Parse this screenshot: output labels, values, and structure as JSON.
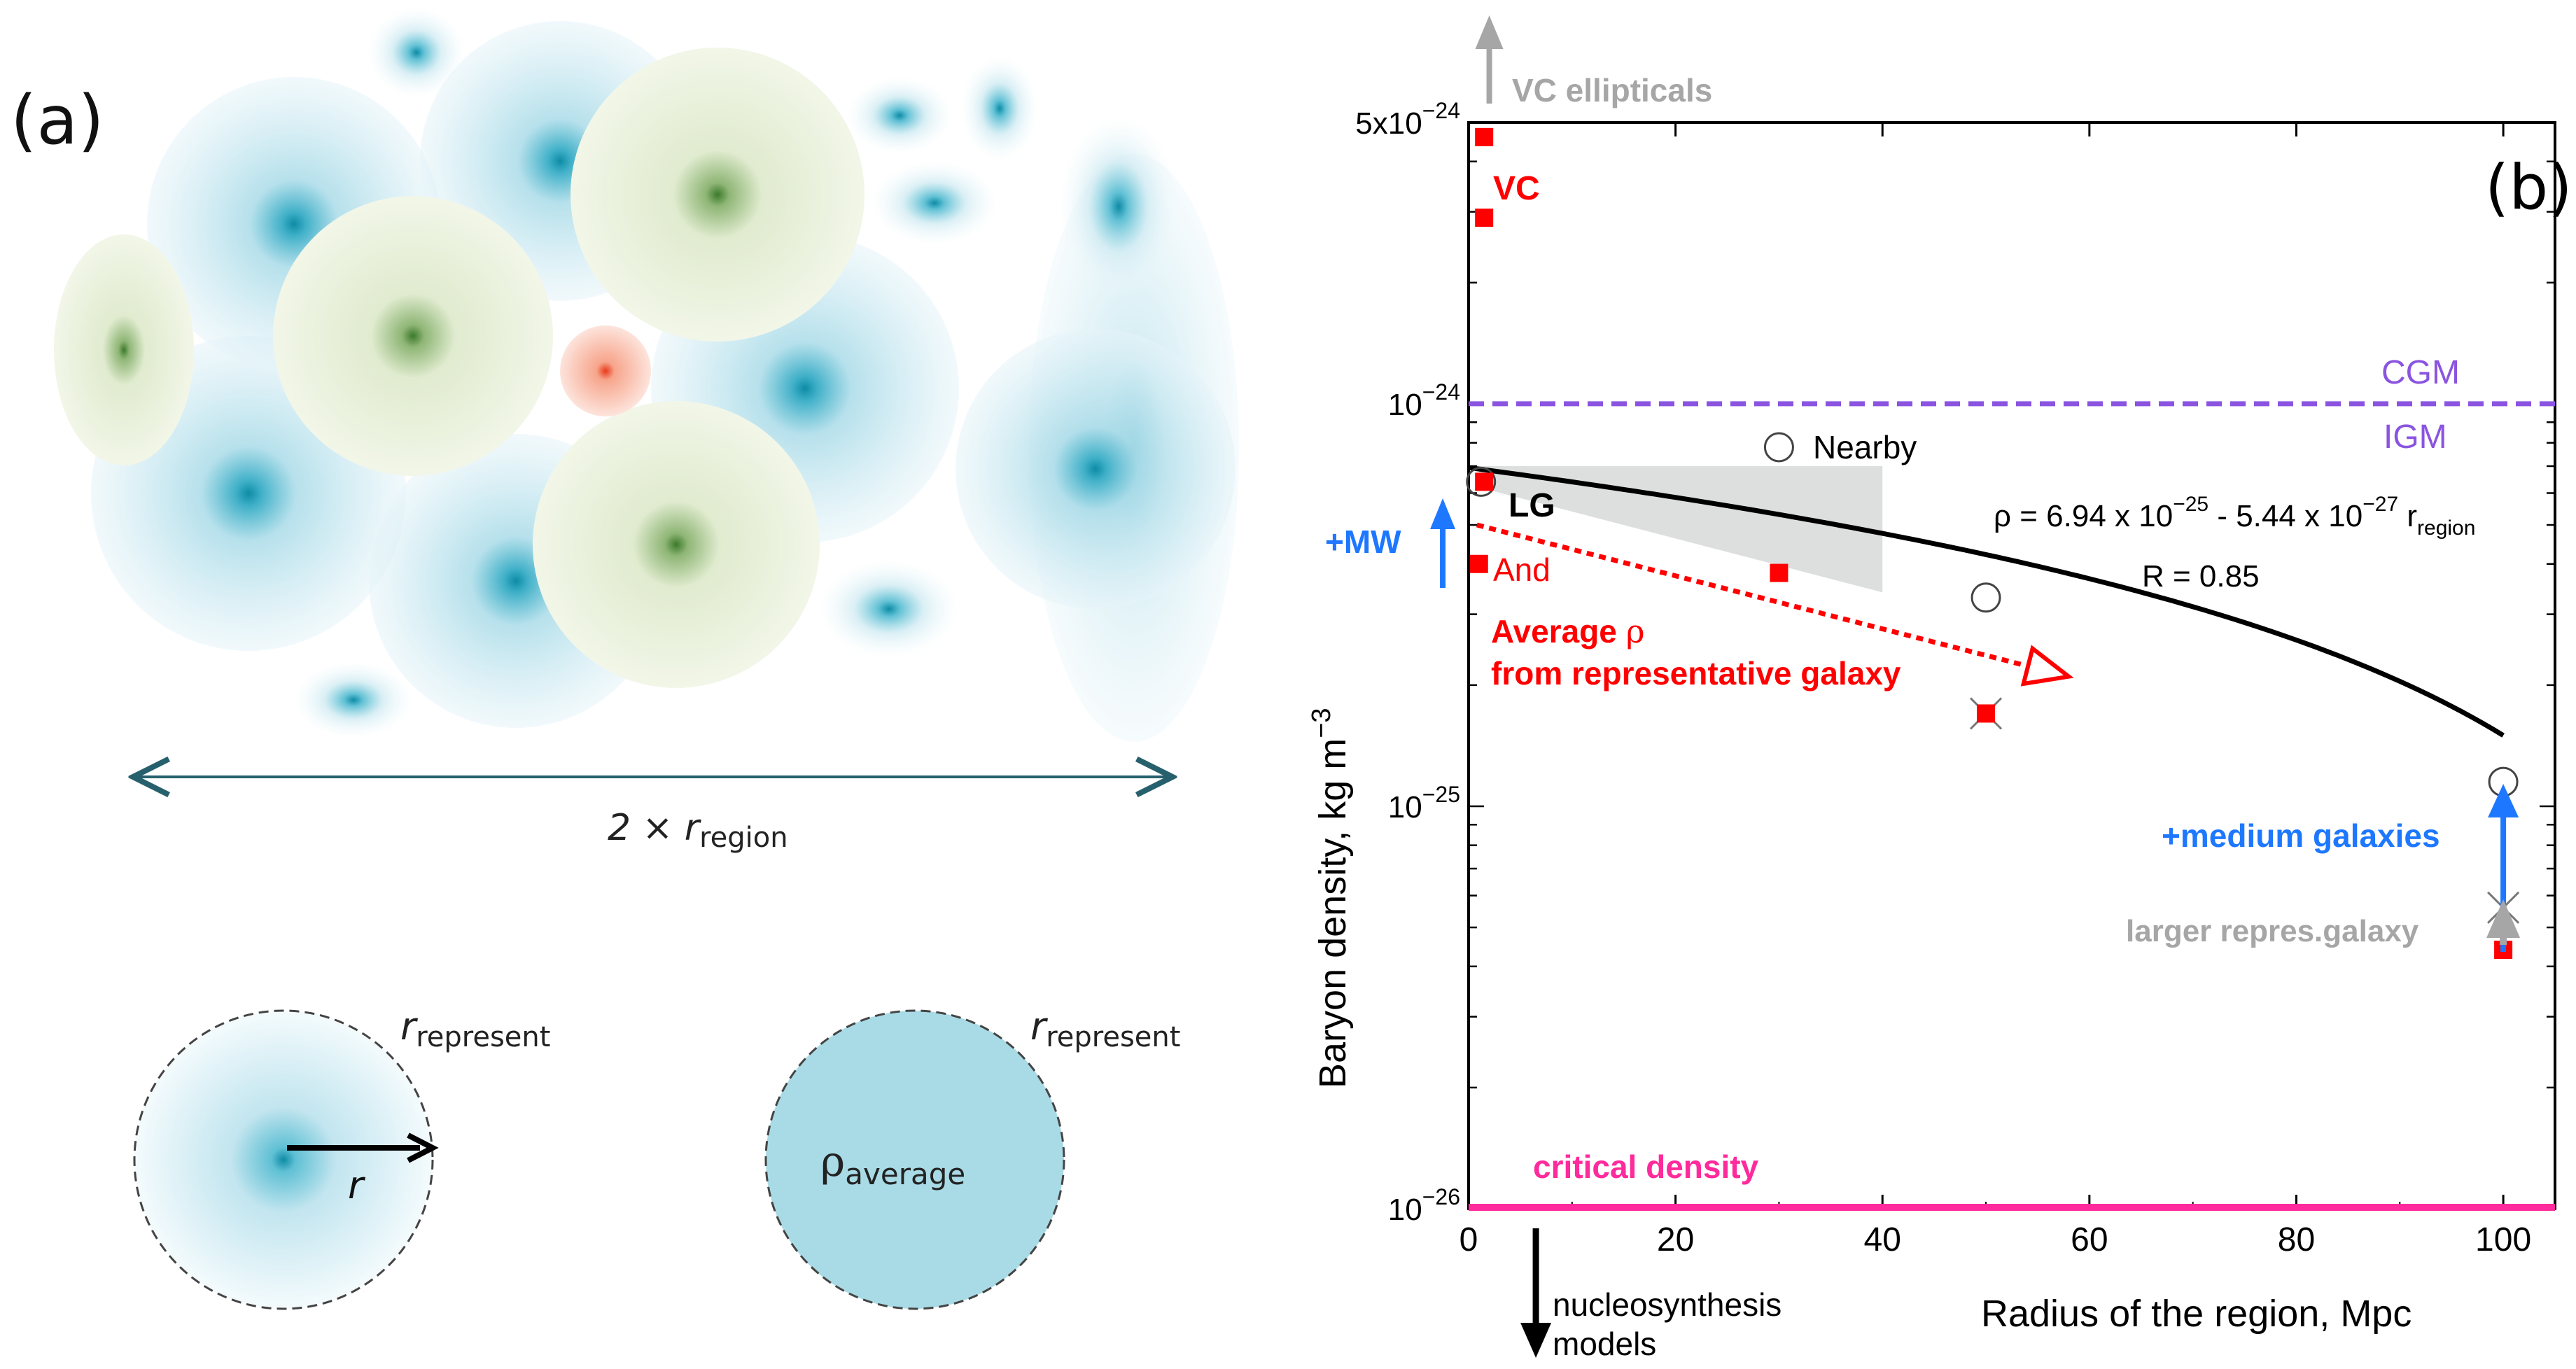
{
  "panel_a": {
    "label": "(a)",
    "region_label": {
      "prefix": "2 × ",
      "r": "r",
      "sub": "region"
    },
    "represent_label": {
      "r": "r",
      "sub": "represent"
    },
    "radius_label": "r",
    "avg_label": {
      "rho": "ρ",
      "sub": "average"
    }
  },
  "chart_data": {
    "type": "scatter",
    "panel_label": "(b)",
    "xlabel": "Radius of the region, Mpc",
    "ylabel": "Baryon density, kg m",
    "ylabel_sup": "−3",
    "xlim": [
      0,
      105
    ],
    "ylim": [
      1e-26,
      5e-24
    ],
    "yscale": "log",
    "x_ticks": [
      0,
      20,
      40,
      60,
      80,
      100
    ],
    "y_tick_labels": [
      {
        "value": 5e-24,
        "mant": "5x10",
        "exp": "−24"
      },
      {
        "value": 1e-24,
        "mant": "10",
        "exp": "−24"
      },
      {
        "value": 1e-25,
        "mant": "10",
        "exp": "−25"
      },
      {
        "value": 1e-26,
        "mant": "10",
        "exp": "−26"
      }
    ],
    "red_squares": [
      {
        "x": 1.5,
        "y": 4.6e-24
      },
      {
        "x": 1.5,
        "y": 2.9e-24
      },
      {
        "x": 1.5,
        "y": 6.4e-25
      },
      {
        "x": 1.0,
        "y": 4e-25
      },
      {
        "x": 30,
        "y": 3.8e-25
      },
      {
        "x": 50,
        "y": 1.7e-25
      },
      {
        "x": 100,
        "y": 4.4e-26
      }
    ],
    "open_circles": [
      {
        "x": 1.2,
        "y": 6.4e-25,
        "label": "LG"
      },
      {
        "x": 30,
        "y": 7.8e-25,
        "label": "Nearby"
      },
      {
        "x": 50,
        "y": 3.3e-25,
        "label": ""
      },
      {
        "x": 100,
        "y": 1.15e-25,
        "label": ""
      }
    ],
    "crosses": [
      {
        "x": 50,
        "y": 1.7e-25
      },
      {
        "x": 100,
        "y": 5.6e-26
      }
    ],
    "fit": {
      "a": 6.94e-25,
      "b": 5.44e-27,
      "x_range": [
        0,
        100
      ],
      "label_prefix": "ρ = 6.94 x 10",
      "exp1": "−25",
      "label_mid": " - 5.44 x 10",
      "exp2": "−27",
      "label_r": " r",
      "label_sub": "region",
      "r_label": "R = 0.85"
    },
    "band": [
      [
        1,
        7e-25,
        6.2e-25
      ],
      [
        40,
        7e-25,
        3.4e-25
      ]
    ],
    "cgm_level": 1e-24,
    "cgm_label": "CGM",
    "igm_label": "IGM",
    "critical_level": 1e-26,
    "critical_label": "critical density",
    "vc_label": "VC",
    "vc_ellipticals_label": "VC ellipticals",
    "and_label": "And",
    "mw_label": "+MW",
    "avg_label_1": "Average ",
    "avg_rho": "ρ",
    "avg_label_2": "from representative galaxy",
    "avg_arrow": {
      "from": [
        0.8,
        5e-25
      ],
      "to": [
        58,
        2.1e-25
      ]
    },
    "medium_label": "+medium galaxies",
    "larger_label": "larger repres.galaxy",
    "nucleo_label_1": "nucleosynthesis",
    "nucleo_label_2": "models",
    "colors": {
      "red": "#ff0000",
      "blue": "#1e78ff",
      "gray": "#a6a6a6",
      "purple": "#8a54e0",
      "pink": "#ff2a9c",
      "band": "#d9dbdb"
    }
  }
}
